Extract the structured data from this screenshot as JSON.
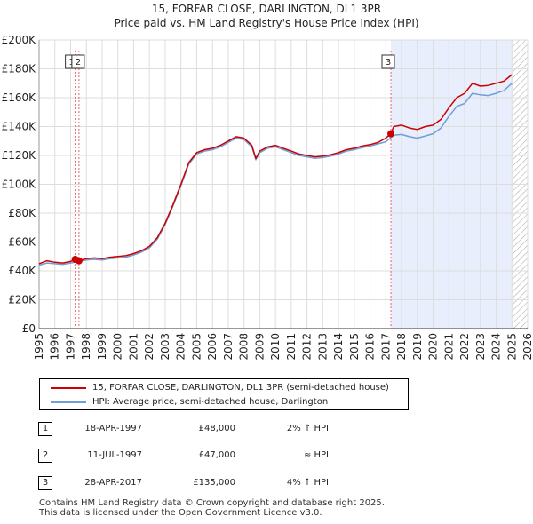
{
  "chart_data": {
    "type": "line",
    "title": "15, FORFAR CLOSE, DARLINGTON, DL1 3PR",
    "subtitle": "Price paid vs. HM Land Registry's House Price Index (HPI)",
    "xlabel": "",
    "ylabel": "",
    "xlim": [
      1995,
      2026
    ],
    "ylim": [
      0,
      200000
    ],
    "grid": true,
    "x_ticks": [
      "1995",
      "1996",
      "1997",
      "1998",
      "1999",
      "2000",
      "2001",
      "2002",
      "2003",
      "2004",
      "2005",
      "2006",
      "2007",
      "2008",
      "2009",
      "2010",
      "2011",
      "2012",
      "2013",
      "2014",
      "2015",
      "2016",
      "2017",
      "2018",
      "2019",
      "2020",
      "2021",
      "2022",
      "2023",
      "2024",
      "2025",
      "2026"
    ],
    "y_ticks": [
      {
        "value": 0,
        "label": "£0"
      },
      {
        "value": 20000,
        "label": "£20K"
      },
      {
        "value": 40000,
        "label": "£40K"
      },
      {
        "value": 60000,
        "label": "£60K"
      },
      {
        "value": 80000,
        "label": "£80K"
      },
      {
        "value": 100000,
        "label": "£100K"
      },
      {
        "value": 120000,
        "label": "£120K"
      },
      {
        "value": 140000,
        "label": "£140K"
      },
      {
        "value": 160000,
        "label": "£160K"
      },
      {
        "value": 180000,
        "label": "£180K"
      },
      {
        "value": 200000,
        "label": "£200K"
      }
    ],
    "series": [
      {
        "name": "15, FORFAR CLOSE, DARLINGTON, DL1 3PR (semi-detached house)",
        "color": "#cc0000",
        "x": [
          1995.0,
          1995.5,
          1996.0,
          1996.5,
          1997.0,
          1997.29,
          1997.53,
          1998.0,
          1998.5,
          1999.0,
          1999.5,
          2000.0,
          2000.5,
          2001.0,
          2001.5,
          2002.0,
          2002.5,
          2003.0,
          2003.5,
          2004.0,
          2004.5,
          2005.0,
          2005.5,
          2006.0,
          2006.5,
          2007.0,
          2007.5,
          2008.0,
          2008.5,
          2008.75,
          2009.0,
          2009.5,
          2010.0,
          2010.5,
          2011.0,
          2011.5,
          2012.0,
          2012.5,
          2013.0,
          2013.5,
          2014.0,
          2014.5,
          2015.0,
          2015.5,
          2016.0,
          2016.5,
          2017.0,
          2017.32,
          2017.5,
          2018.0,
          2018.5,
          2019.0,
          2019.5,
          2020.0,
          2020.5,
          2021.0,
          2021.5,
          2022.0,
          2022.5,
          2023.0,
          2023.5,
          2024.0,
          2024.5,
          2025.0
        ],
        "values": [
          45000,
          47000,
          46000,
          45500,
          46500,
          48000,
          47000,
          48500,
          49000,
          48500,
          49500,
          50000,
          50500,
          52000,
          54000,
          57000,
          63000,
          73000,
          86000,
          100000,
          115000,
          122000,
          124000,
          125000,
          127000,
          130000,
          133000,
          132000,
          127000,
          118000,
          123000,
          126000,
          127000,
          125000,
          123000,
          121000,
          120000,
          119000,
          119500,
          120500,
          122000,
          124000,
          125000,
          126500,
          127500,
          129000,
          132000,
          135000,
          140000,
          141000,
          139000,
          138000,
          140000,
          141000,
          145000,
          153000,
          160000,
          163000,
          170000,
          168000,
          168500,
          170000,
          171500,
          176000
        ]
      },
      {
        "name": "HPI: Average price, semi-detached house, Darlington",
        "color": "#6f9fd8",
        "x": [
          1995.0,
          1995.5,
          1996.0,
          1996.5,
          1997.0,
          1997.5,
          1998.0,
          1998.5,
          1999.0,
          1999.5,
          2000.0,
          2000.5,
          2001.0,
          2001.5,
          2002.0,
          2002.5,
          2003.0,
          2003.5,
          2004.0,
          2004.5,
          2005.0,
          2005.5,
          2006.0,
          2006.5,
          2007.0,
          2007.5,
          2008.0,
          2008.5,
          2008.75,
          2009.0,
          2009.5,
          2010.0,
          2010.5,
          2011.0,
          2011.5,
          2012.0,
          2012.5,
          2013.0,
          2013.5,
          2014.0,
          2014.5,
          2015.0,
          2015.5,
          2016.0,
          2016.5,
          2017.0,
          2017.5,
          2018.0,
          2018.5,
          2019.0,
          2019.5,
          2020.0,
          2020.5,
          2021.0,
          2021.5,
          2022.0,
          2022.5,
          2023.0,
          2023.5,
          2024.0,
          2024.5,
          2025.0
        ],
        "values": [
          44000,
          45500,
          45000,
          44500,
          45500,
          46500,
          47500,
          48000,
          47500,
          48500,
          49000,
          49500,
          51000,
          53000,
          56000,
          62000,
          72000,
          85000,
          99000,
          114000,
          121000,
          123000,
          124000,
          126000,
          129000,
          132000,
          131000,
          126000,
          117000,
          122000,
          125000,
          126000,
          124000,
          122000,
          120000,
          119000,
          118000,
          118500,
          119500,
          121000,
          123000,
          124000,
          125500,
          126500,
          128000,
          129500,
          134000,
          134500,
          133000,
          132000,
          133500,
          135000,
          139000,
          147000,
          154000,
          156000,
          163000,
          162000,
          161500,
          163000,
          165000,
          170000
        ]
      }
    ],
    "markers": [
      {
        "num": "1",
        "x": 1997.29,
        "value": 48000
      },
      {
        "num": "2",
        "x": 1997.53,
        "value": 47000
      },
      {
        "num": "3",
        "x": 2017.32,
        "value": 135000
      }
    ],
    "shaded_from": 2017.32,
    "hatched_from": 2025.0,
    "box_labels": [
      "1",
      "2",
      "3"
    ]
  },
  "legend": {
    "property_label": "15, FORFAR CLOSE, DARLINGTON, DL1 3PR (semi-detached house)",
    "hpi_label": "HPI: Average price, semi-detached house, Darlington",
    "property_color": "#cc0000",
    "hpi_color": "#6f9fd8"
  },
  "transactions": [
    {
      "num": "1",
      "date": "18-APR-1997",
      "price": "£48,000",
      "hpi": "2% ↑ HPI"
    },
    {
      "num": "2",
      "date": "11-JUL-1997",
      "price": "£47,000",
      "hpi": "≈ HPI"
    },
    {
      "num": "3",
      "date": "28-APR-2017",
      "price": "£135,000",
      "hpi": "4% ↑ HPI"
    }
  ],
  "footer": {
    "line1": "Contains HM Land Registry data © Crown copyright and database right 2025.",
    "line2": "This data is licensed under the Open Government Licence v3.0."
  }
}
